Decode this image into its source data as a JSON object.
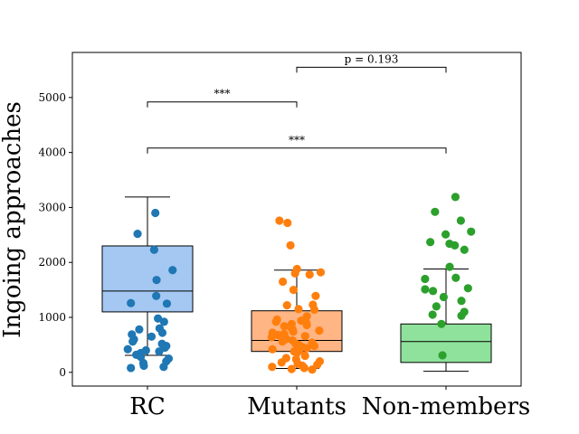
{
  "chart_data": {
    "type": "box",
    "categories": [
      "RC",
      "Mutants",
      "Non-members"
    ],
    "ylabel": "Ingoing approaches",
    "xlabel": "",
    "title": "",
    "ylim": [
      -250,
      5820
    ],
    "yticks": [
      0,
      1000,
      2000,
      3000,
      4000,
      5000
    ],
    "yticks_labels": [
      "0",
      "1000",
      "2000",
      "3000",
      "4000",
      "5000"
    ],
    "grid": false,
    "colors": {
      "box_fill": [
        "#a4c8f2",
        "#ffb584",
        "#8fe29b"
      ],
      "points": [
        "#1f77b4",
        "#ff7f0e",
        "#2ca02c"
      ]
    },
    "series": [
      {
        "boxes": [
          {
            "whisker_low": 310,
            "q1": 1100,
            "median": 1480,
            "q3": 2300,
            "whisker_high": 3190
          },
          {
            "whisker_low": 70,
            "q1": 380,
            "median": 580,
            "q3": 1120,
            "whisker_high": 1860
          },
          {
            "whisker_low": 20,
            "q1": 180,
            "median": 560,
            "q3": 880,
            "whisker_high": 1880
          }
        ]
      }
    ],
    "points": [
      [
        2900,
        2520,
        2230,
        1860,
        1680,
        1390,
        1260,
        1250,
        980,
        920,
        800,
        780,
        720,
        690,
        650,
        600,
        560,
        520,
        480,
        450,
        420,
        400,
        380,
        350,
        320,
        280,
        250,
        200,
        170,
        120,
        100,
        80
      ],
      [
        2760,
        2720,
        2310,
        1880,
        1820,
        1800,
        1780,
        1650,
        1500,
        1390,
        1230,
        1220,
        1150,
        1140,
        1020,
        960,
        940,
        920,
        900,
        880,
        860,
        840,
        820,
        800,
        780,
        760,
        740,
        720,
        700,
        680,
        660,
        640,
        620,
        600,
        580,
        560,
        540,
        520,
        500,
        480,
        460,
        440,
        420,
        400,
        380,
        360,
        300,
        260,
        240,
        200,
        180,
        160,
        140,
        120,
        100,
        90,
        80,
        60,
        50
      ],
      [
        3190,
        2920,
        2760,
        2560,
        2510,
        2370,
        2340,
        2310,
        2230,
        1920,
        1720,
        1700,
        1530,
        1510,
        1480,
        1370,
        1300,
        1200,
        1100,
        1050,
        1030,
        880,
        310
      ]
    ],
    "annotations": [
      {
        "from": 0,
        "to": 1,
        "y": 4920,
        "text": "***"
      },
      {
        "from": 0,
        "to": 2,
        "y": 4080,
        "text": "***"
      },
      {
        "from": 1,
        "to": 2,
        "y": 5550,
        "text": "p = 0.193"
      }
    ]
  }
}
